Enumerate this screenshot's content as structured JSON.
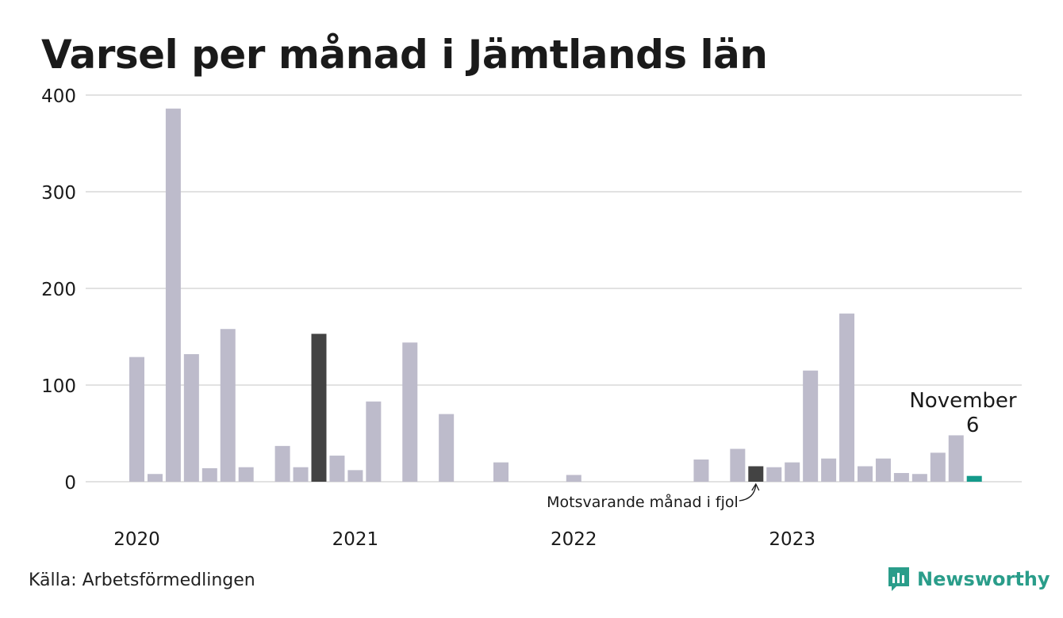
{
  "colors": {
    "bar": "#bdbbcb",
    "bar_highlight_prev": "#434343",
    "bar_current": "#139a8a",
    "grid": "#e2e2e2",
    "brand": "#2a9d8a"
  },
  "source": "Källa: Arbetsförmedlingen",
  "logo": {
    "text": "Newsworthy",
    "icon": "newsworthy-logo-icon"
  },
  "chart_data": {
    "type": "bar",
    "title": "Varsel per månad i Jämtlands län",
    "xlabel": "",
    "ylabel": "",
    "ylim": [
      0,
      400
    ],
    "yticks": [
      0,
      100,
      200,
      300,
      400
    ],
    "grid": true,
    "categories": [
      "2020-01",
      "2020-02",
      "2020-03",
      "2020-04",
      "2020-05",
      "2020-06",
      "2020-07",
      "2020-08",
      "2020-09",
      "2020-10",
      "2020-11",
      "2020-12",
      "2021-01",
      "2021-02",
      "2021-03",
      "2021-04",
      "2021-05",
      "2021-06",
      "2021-07",
      "2021-08",
      "2021-09",
      "2021-10",
      "2021-11",
      "2021-12",
      "2022-01",
      "2022-02",
      "2022-03",
      "2022-04",
      "2022-05",
      "2022-06",
      "2022-07",
      "2022-08",
      "2022-09",
      "2022-10",
      "2022-11",
      "2022-12",
      "2023-01",
      "2023-02",
      "2023-03",
      "2023-04",
      "2023-05",
      "2023-06",
      "2023-07",
      "2023-08",
      "2023-09",
      "2023-10",
      "2023-11"
    ],
    "values": [
      129,
      8,
      386,
      132,
      14,
      158,
      15,
      0,
      37,
      15,
      153,
      27,
      12,
      83,
      0,
      144,
      0,
      70,
      0,
      0,
      20,
      0,
      0,
      0,
      7,
      0,
      0,
      0,
      0,
      0,
      0,
      23,
      0,
      34,
      16,
      15,
      20,
      115,
      24,
      174,
      16,
      24,
      9,
      8,
      30,
      48,
      6
    ],
    "year_labels": [
      {
        "label": "2020",
        "index": 0
      },
      {
        "label": "2021",
        "index": 12
      },
      {
        "label": "2022",
        "index": 24
      },
      {
        "label": "2023",
        "index": 36
      }
    ],
    "highlight_prev_indices": [
      10,
      34
    ],
    "current_index": 46,
    "annotations": {
      "current_month": "November",
      "current_value": "6",
      "prev_year_label": "Motsvarande månad i fjol"
    }
  }
}
